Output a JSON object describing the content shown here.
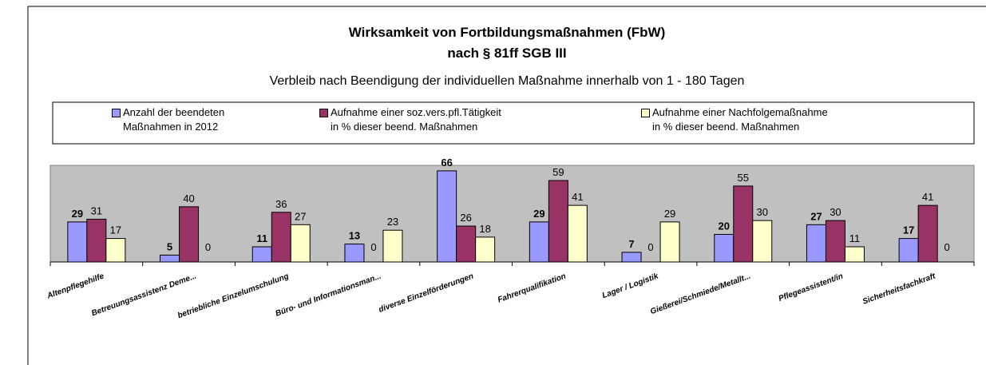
{
  "chart_data": {
    "type": "bar",
    "title": "Wirksamkeit von Fortbildungsmaßnahmen (FbW)",
    "title2": "nach § 81ff SGB III",
    "subtitle": "Verbleib nach Beendigung der individuellen Maßnahme innerhalb von 1 - 180 Tagen",
    "categories": [
      "Altenpflegehilfe",
      "Betreuungsassistenz Deme...",
      "betriebliche Einzelumschulung",
      "Büro- und Informationsman...",
      "diverse Einzelförderungen",
      "Fahrerqualifikation",
      "Lager / Logistik",
      "Gießerei/Schmiede/Metallt...",
      "Pflegeassistent/in",
      "Sicherheitsfachkraft"
    ],
    "series": [
      {
        "name": "Anzahl der beendeten\nMaßnahmen in 2012",
        "color": "#9999ff",
        "values": [
          29,
          5,
          11,
          13,
          66,
          29,
          7,
          20,
          27,
          17
        ]
      },
      {
        "name": "Aufnahme einer soz.vers.pfl.Tätigkeit\nin % dieser beend. Maßnahmen",
        "color": "#993366",
        "values": [
          31,
          40,
          36,
          0,
          26,
          59,
          0,
          55,
          30,
          41
        ]
      },
      {
        "name": "Aufnahme einer Nachfolgemaßnahme\nin % dieser beend. Maßnahmen",
        "color": "#ffffcc",
        "values": [
          17,
          0,
          27,
          23,
          18,
          41,
          29,
          30,
          11,
          0
        ]
      }
    ],
    "ylim": [
      0,
      70
    ]
  }
}
